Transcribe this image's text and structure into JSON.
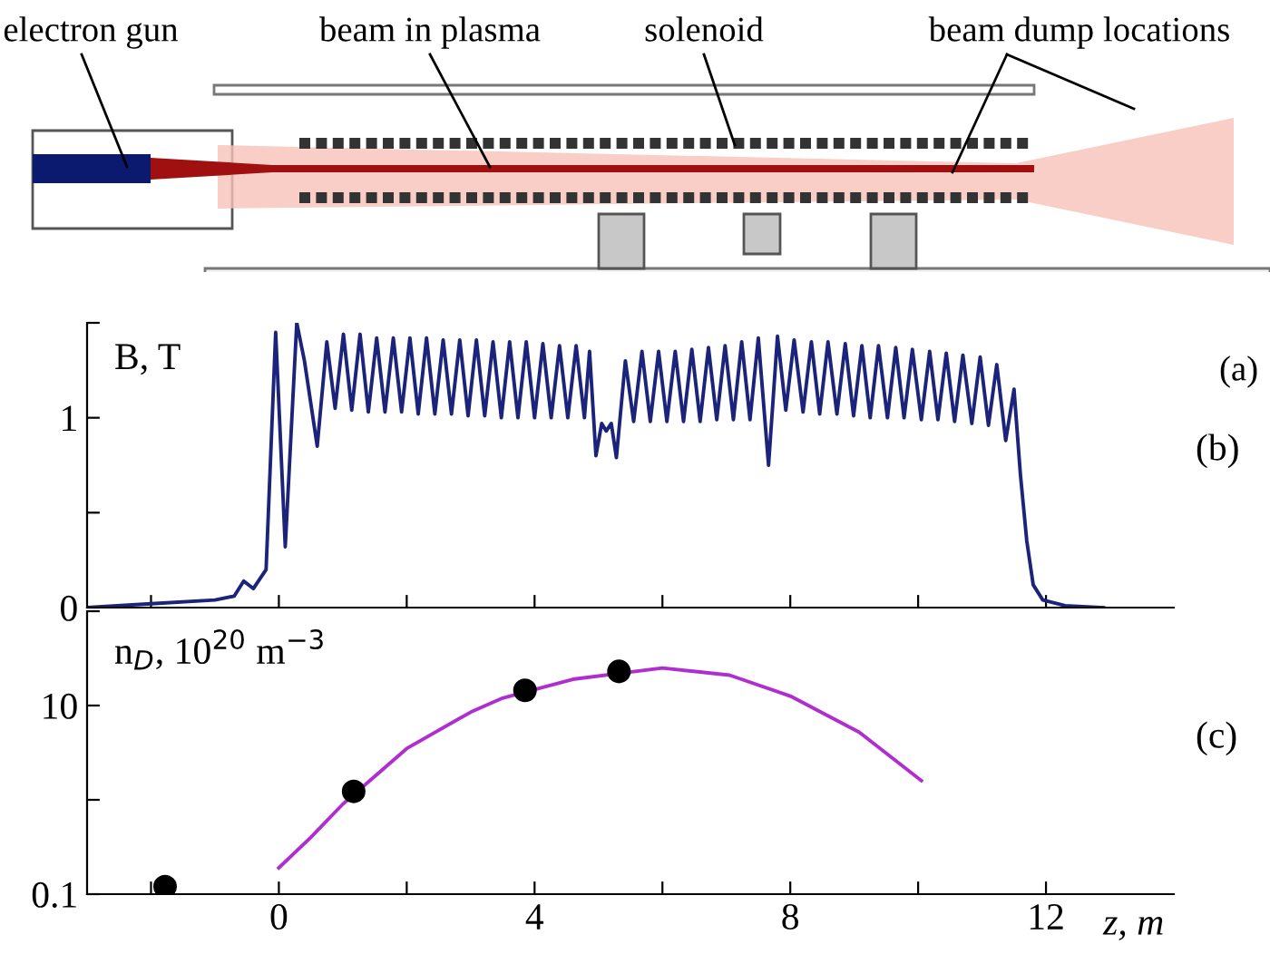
{
  "chart_data": [
    {
      "type": "other",
      "annotations": [
        "electron gun",
        "beam in plasma",
        "solenoid",
        "beam dump locations",
        "(a)"
      ]
    },
    {
      "type": "line",
      "ylabel": "B, T",
      "annotations": [
        "(b)"
      ],
      "xlim": [
        -3,
        14
      ],
      "ylim": [
        0,
        1.5
      ],
      "xticks": [
        {
          "value": -2,
          "label": null
        },
        {
          "value": 0,
          "label": null
        },
        {
          "value": 2,
          "label": null
        },
        {
          "value": 4,
          "label": null
        },
        {
          "value": 6,
          "label": null
        },
        {
          "value": 8,
          "label": null
        },
        {
          "value": 10,
          "label": null
        },
        {
          "value": 12,
          "label": null
        }
      ],
      "yticks": [
        0,
        {
          "value": 0.5,
          "label": null
        },
        1,
        {
          "value": 1.5,
          "label": null
        }
      ],
      "tick_labels": "y",
      "series": [
        {
          "color": "#1c237a",
          "marker": "none",
          "line_style": "solid",
          "x": [
            -3,
            -2,
            -1,
            -0.7,
            -0.55,
            -0.4,
            -0.2,
            -0.05,
            0.1,
            0.28,
            0.4,
            0.6,
            0.75,
            0.88,
            1.01,
            1.14,
            1.27,
            1.4,
            1.53,
            1.66,
            1.79,
            1.92,
            2.05,
            2.18,
            2.31,
            2.44,
            2.57,
            2.7,
            2.83,
            2.96,
            3.09,
            3.22,
            3.35,
            3.48,
            3.61,
            3.74,
            3.87,
            4.0,
            4.13,
            4.26,
            4.39,
            4.52,
            4.65,
            4.78,
            4.86,
            4.96,
            5.05,
            5.12,
            5.2,
            5.28,
            5.42,
            5.55,
            5.68,
            5.81,
            5.94,
            6.07,
            6.2,
            6.33,
            6.46,
            6.59,
            6.72,
            6.85,
            6.98,
            7.11,
            7.24,
            7.37,
            7.5,
            7.66,
            7.8,
            7.93,
            8.06,
            8.2,
            8.33,
            8.46,
            8.59,
            8.73,
            8.86,
            8.99,
            9.12,
            9.25,
            9.38,
            9.52,
            9.65,
            9.78,
            9.91,
            10.05,
            10.18,
            10.31,
            10.44,
            10.57,
            10.7,
            10.84,
            10.97,
            11.1,
            11.23,
            11.37,
            11.5,
            11.6,
            11.7,
            11.8,
            11.95,
            12.3,
            12.9
          ],
          "values": [
            0,
            0.02,
            0.04,
            0.06,
            0.14,
            0.1,
            0.2,
            1.45,
            0.32,
            1.5,
            1.3,
            0.85,
            1.4,
            1.05,
            1.44,
            1.04,
            1.44,
            1.03,
            1.42,
            1.03,
            1.42,
            1.03,
            1.42,
            1.02,
            1.42,
            1.02,
            1.41,
            1.02,
            1.41,
            1.01,
            1.41,
            1.01,
            1.4,
            1.0,
            1.4,
            1.0,
            1.4,
            1.0,
            1.39,
            1.0,
            1.38,
            1.0,
            1.38,
            1.0,
            1.35,
            0.8,
            0.97,
            0.93,
            0.97,
            0.79,
            1.3,
            0.98,
            1.35,
            0.98,
            1.35,
            0.98,
            1.35,
            0.98,
            1.36,
            0.98,
            1.37,
            0.99,
            1.38,
            0.99,
            1.4,
            0.99,
            1.42,
            0.75,
            1.43,
            1.04,
            1.41,
            1.03,
            1.4,
            1.02,
            1.4,
            1.02,
            1.39,
            1.01,
            1.38,
            1.0,
            1.38,
            1.0,
            1.37,
            1.0,
            1.36,
            0.99,
            1.35,
            0.99,
            1.34,
            0.98,
            1.33,
            0.97,
            1.32,
            0.96,
            1.28,
            0.88,
            1.15,
            0.7,
            0.35,
            0.12,
            0.04,
            0.01,
            0
          ]
        }
      ]
    },
    {
      "type": "line",
      "ylabel": "n$_{D}$, 10$^{20}$ m$^{−3}$",
      "xlabel": "z, m",
      "annotations": [
        "(c)"
      ],
      "log": "y",
      "xlim": [
        -3,
        14
      ],
      "ylim": [
        0.1,
        100
      ],
      "xticks": [
        {
          "value": -2,
          "label": null
        },
        0,
        {
          "value": 2,
          "label": null
        },
        4,
        {
          "value": 6,
          "label": null
        },
        8,
        {
          "value": 10,
          "label": null
        },
        12
      ],
      "yticks": [
        0.1,
        {
          "value": 1,
          "label": null
        },
        10,
        {
          "value": 100,
          "label": null
        }
      ],
      "series": [
        {
          "type": "scatter",
          "color": "#000000",
          "marker": "circle",
          "x": [
            -1.78,
            1.17,
            3.85,
            5.32
          ],
          "values": [
            0.12,
            1.23,
            14.5,
            23
          ]
        },
        {
          "type": "line",
          "color": "#b02ed0",
          "marker": "none",
          "line_style": "solid",
          "x": [
            0,
            0.5,
            1.0,
            2,
            3,
            3.5,
            4.6,
            6,
            7.05,
            8,
            9.08,
            10.05
          ],
          "values": [
            0.19,
            0.4,
            0.9,
            3.5,
            8.5,
            12,
            19,
            25,
            21,
            12.6,
            5.2,
            1.6
          ]
        }
      ]
    }
  ]
}
